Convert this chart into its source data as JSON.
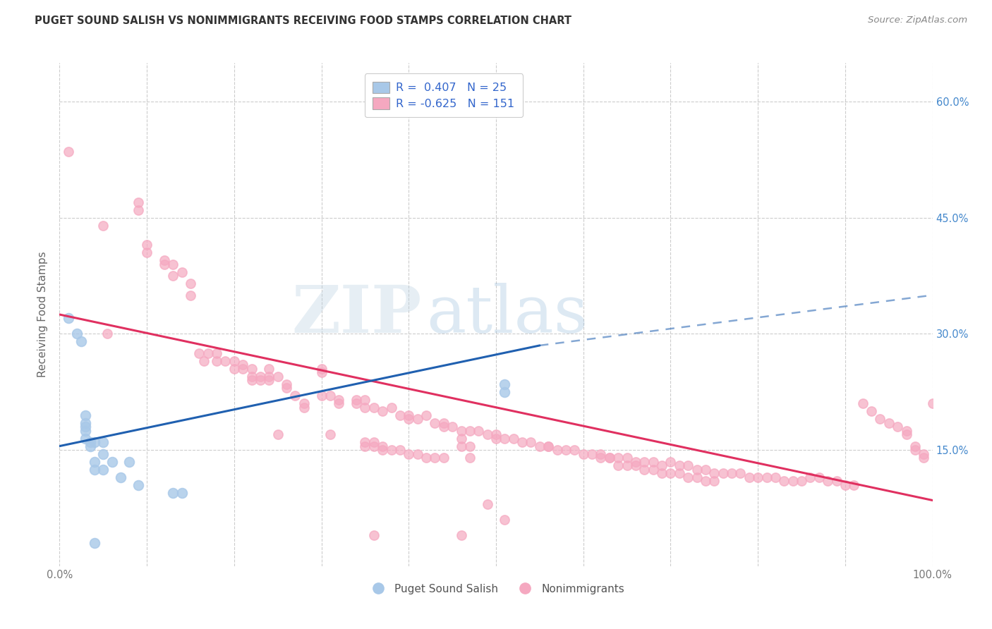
{
  "title": "PUGET SOUND SALISH VS NONIMMIGRANTS RECEIVING FOOD STAMPS CORRELATION CHART",
  "source": "Source: ZipAtlas.com",
  "ylabel_label": "Receiving Food Stamps",
  "legend1_R": "0.407",
  "legend1_N": "25",
  "legend2_R": "-0.625",
  "legend2_N": "151",
  "blue_color": "#a8c8e8",
  "pink_color": "#f5a8c0",
  "blue_line_color": "#2060b0",
  "pink_line_color": "#e03060",
  "blue_scatter": [
    [
      0.01,
      0.32
    ],
    [
      0.02,
      0.3
    ],
    [
      0.025,
      0.29
    ],
    [
      0.03,
      0.195
    ],
    [
      0.03,
      0.185
    ],
    [
      0.03,
      0.18
    ],
    [
      0.03,
      0.175
    ],
    [
      0.03,
      0.165
    ],
    [
      0.035,
      0.16
    ],
    [
      0.035,
      0.155
    ],
    [
      0.04,
      0.16
    ],
    [
      0.04,
      0.135
    ],
    [
      0.04,
      0.125
    ],
    [
      0.05,
      0.16
    ],
    [
      0.05,
      0.145
    ],
    [
      0.05,
      0.125
    ],
    [
      0.06,
      0.135
    ],
    [
      0.07,
      0.115
    ],
    [
      0.08,
      0.135
    ],
    [
      0.09,
      0.105
    ],
    [
      0.13,
      0.095
    ],
    [
      0.14,
      0.095
    ],
    [
      0.51,
      0.235
    ],
    [
      0.51,
      0.225
    ],
    [
      0.04,
      0.03
    ]
  ],
  "pink_scatter": [
    [
      0.01,
      0.535
    ],
    [
      0.05,
      0.44
    ],
    [
      0.055,
      0.3
    ],
    [
      0.09,
      0.47
    ],
    [
      0.09,
      0.46
    ],
    [
      0.1,
      0.415
    ],
    [
      0.1,
      0.405
    ],
    [
      0.12,
      0.395
    ],
    [
      0.12,
      0.39
    ],
    [
      0.13,
      0.39
    ],
    [
      0.13,
      0.375
    ],
    [
      0.14,
      0.38
    ],
    [
      0.15,
      0.365
    ],
    [
      0.15,
      0.35
    ],
    [
      0.16,
      0.275
    ],
    [
      0.165,
      0.265
    ],
    [
      0.17,
      0.275
    ],
    [
      0.18,
      0.275
    ],
    [
      0.18,
      0.265
    ],
    [
      0.19,
      0.265
    ],
    [
      0.2,
      0.265
    ],
    [
      0.2,
      0.255
    ],
    [
      0.21,
      0.26
    ],
    [
      0.21,
      0.255
    ],
    [
      0.22,
      0.255
    ],
    [
      0.22,
      0.245
    ],
    [
      0.22,
      0.24
    ],
    [
      0.23,
      0.245
    ],
    [
      0.23,
      0.24
    ],
    [
      0.24,
      0.255
    ],
    [
      0.24,
      0.245
    ],
    [
      0.24,
      0.24
    ],
    [
      0.25,
      0.245
    ],
    [
      0.25,
      0.17
    ],
    [
      0.26,
      0.235
    ],
    [
      0.26,
      0.23
    ],
    [
      0.27,
      0.22
    ],
    [
      0.28,
      0.21
    ],
    [
      0.28,
      0.205
    ],
    [
      0.3,
      0.255
    ],
    [
      0.3,
      0.25
    ],
    [
      0.3,
      0.22
    ],
    [
      0.31,
      0.22
    ],
    [
      0.31,
      0.17
    ],
    [
      0.32,
      0.215
    ],
    [
      0.32,
      0.21
    ],
    [
      0.34,
      0.215
    ],
    [
      0.34,
      0.21
    ],
    [
      0.35,
      0.215
    ],
    [
      0.35,
      0.205
    ],
    [
      0.35,
      0.16
    ],
    [
      0.35,
      0.155
    ],
    [
      0.36,
      0.205
    ],
    [
      0.36,
      0.16
    ],
    [
      0.36,
      0.155
    ],
    [
      0.36,
      0.04
    ],
    [
      0.37,
      0.2
    ],
    [
      0.37,
      0.155
    ],
    [
      0.37,
      0.15
    ],
    [
      0.38,
      0.205
    ],
    [
      0.38,
      0.15
    ],
    [
      0.39,
      0.195
    ],
    [
      0.39,
      0.15
    ],
    [
      0.4,
      0.195
    ],
    [
      0.4,
      0.19
    ],
    [
      0.4,
      0.145
    ],
    [
      0.41,
      0.19
    ],
    [
      0.41,
      0.145
    ],
    [
      0.42,
      0.195
    ],
    [
      0.42,
      0.14
    ],
    [
      0.43,
      0.185
    ],
    [
      0.43,
      0.14
    ],
    [
      0.44,
      0.185
    ],
    [
      0.44,
      0.18
    ],
    [
      0.44,
      0.14
    ],
    [
      0.45,
      0.18
    ],
    [
      0.46,
      0.175
    ],
    [
      0.46,
      0.165
    ],
    [
      0.46,
      0.155
    ],
    [
      0.46,
      0.04
    ],
    [
      0.47,
      0.175
    ],
    [
      0.47,
      0.155
    ],
    [
      0.47,
      0.14
    ],
    [
      0.48,
      0.175
    ],
    [
      0.49,
      0.17
    ],
    [
      0.49,
      0.08
    ],
    [
      0.5,
      0.17
    ],
    [
      0.5,
      0.165
    ],
    [
      0.51,
      0.165
    ],
    [
      0.51,
      0.06
    ],
    [
      0.52,
      0.165
    ],
    [
      0.53,
      0.16
    ],
    [
      0.54,
      0.16
    ],
    [
      0.55,
      0.155
    ],
    [
      0.56,
      0.155
    ],
    [
      0.56,
      0.155
    ],
    [
      0.57,
      0.15
    ],
    [
      0.58,
      0.15
    ],
    [
      0.59,
      0.15
    ],
    [
      0.6,
      0.145
    ],
    [
      0.61,
      0.145
    ],
    [
      0.62,
      0.145
    ],
    [
      0.62,
      0.14
    ],
    [
      0.63,
      0.14
    ],
    [
      0.63,
      0.14
    ],
    [
      0.64,
      0.14
    ],
    [
      0.64,
      0.13
    ],
    [
      0.65,
      0.14
    ],
    [
      0.65,
      0.13
    ],
    [
      0.66,
      0.135
    ],
    [
      0.66,
      0.13
    ],
    [
      0.67,
      0.135
    ],
    [
      0.67,
      0.125
    ],
    [
      0.68,
      0.135
    ],
    [
      0.68,
      0.125
    ],
    [
      0.69,
      0.13
    ],
    [
      0.69,
      0.12
    ],
    [
      0.7,
      0.135
    ],
    [
      0.7,
      0.12
    ],
    [
      0.71,
      0.13
    ],
    [
      0.71,
      0.12
    ],
    [
      0.72,
      0.13
    ],
    [
      0.72,
      0.115
    ],
    [
      0.73,
      0.125
    ],
    [
      0.73,
      0.115
    ],
    [
      0.74,
      0.125
    ],
    [
      0.74,
      0.11
    ],
    [
      0.75,
      0.12
    ],
    [
      0.75,
      0.11
    ],
    [
      0.76,
      0.12
    ],
    [
      0.77,
      0.12
    ],
    [
      0.78,
      0.12
    ],
    [
      0.79,
      0.115
    ],
    [
      0.8,
      0.115
    ],
    [
      0.81,
      0.115
    ],
    [
      0.82,
      0.115
    ],
    [
      0.83,
      0.11
    ],
    [
      0.84,
      0.11
    ],
    [
      0.85,
      0.11
    ],
    [
      0.86,
      0.115
    ],
    [
      0.87,
      0.115
    ],
    [
      0.88,
      0.11
    ],
    [
      0.89,
      0.11
    ],
    [
      0.9,
      0.105
    ],
    [
      0.91,
      0.105
    ],
    [
      0.92,
      0.21
    ],
    [
      0.93,
      0.2
    ],
    [
      0.94,
      0.19
    ],
    [
      0.95,
      0.185
    ],
    [
      0.96,
      0.18
    ],
    [
      0.97,
      0.175
    ],
    [
      0.97,
      0.17
    ],
    [
      0.98,
      0.155
    ],
    [
      0.98,
      0.15
    ],
    [
      0.99,
      0.145
    ],
    [
      0.99,
      0.14
    ],
    [
      1.0,
      0.21
    ]
  ],
  "blue_line": {
    "x0": 0.0,
    "y0": 0.155,
    "x1": 0.55,
    "y1": 0.285,
    "dash_x1": 1.0,
    "dash_y1": 0.35
  },
  "pink_line": {
    "x0": 0.0,
    "y0": 0.325,
    "x1": 1.0,
    "y1": 0.085
  },
  "xlim": [
    0.0,
    1.0
  ],
  "ylim": [
    0.0,
    0.65
  ],
  "y_ticks": [
    0.15,
    0.3,
    0.45,
    0.6
  ],
  "watermark_ZIP": "ZIP",
  "watermark_atlas": "atlas",
  "background_color": "#ffffff",
  "grid_color": "#cccccc",
  "title_color": "#333333",
  "source_color": "#888888",
  "tick_color": "#777777",
  "right_tick_color": "#4488cc",
  "ylabel_color": "#666666"
}
